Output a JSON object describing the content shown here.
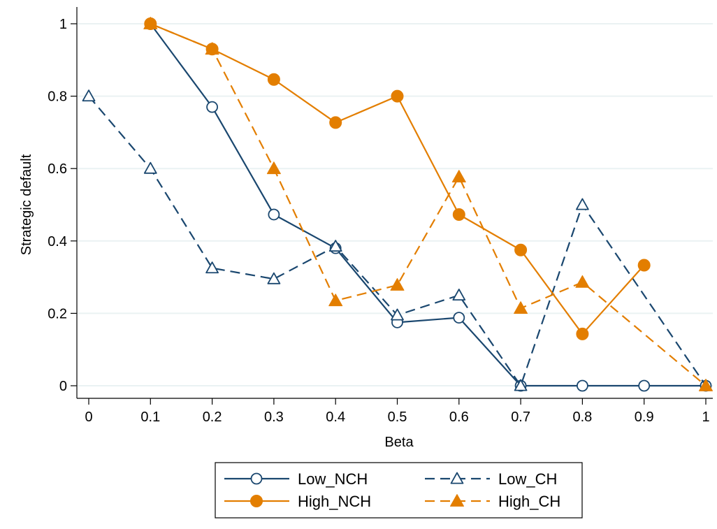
{
  "chart_data": {
    "type": "line",
    "title": "",
    "xlabel": "Beta",
    "ylabel": "Strategic default",
    "xlim": [
      0,
      1
    ],
    "ylim": [
      0,
      1
    ],
    "x_ticks": [
      "0",
      "0.1",
      "0.2",
      "0.3",
      "0.4",
      "0.5",
      "0.6",
      "0.7",
      "0.8",
      "0.9",
      "1"
    ],
    "y_ticks": [
      "0",
      "0.2",
      "0.4",
      "0.6",
      "0.8",
      "1"
    ],
    "grid": true,
    "legend_position": "bottom",
    "series": [
      {
        "name": "Low_NCH",
        "color": "#1a476f",
        "line_style": "solid",
        "marker": "hollow-circle",
        "x": [
          0.1,
          0.2,
          0.3,
          0.4,
          0.5,
          0.6,
          0.7,
          0.8,
          0.9,
          1
        ],
        "y": [
          1.0,
          0.77,
          0.473,
          0.38,
          0.175,
          0.188,
          0.0,
          0.0,
          0.0,
          0.0
        ]
      },
      {
        "name": "Low_CH",
        "color": "#1a476f",
        "line_style": "dashed",
        "marker": "hollow-triangle",
        "x": [
          0,
          0.1,
          0.2,
          0.3,
          0.4,
          0.5,
          0.6,
          0.7,
          0.8,
          1
        ],
        "y": [
          0.8,
          0.6,
          0.325,
          0.295,
          0.385,
          0.195,
          0.25,
          0.0,
          0.5,
          0.0
        ]
      },
      {
        "name": "High_NCH",
        "color": "#e37e00",
        "line_style": "solid",
        "marker": "filled-circle",
        "x": [
          0.1,
          0.2,
          0.3,
          0.4,
          0.5,
          0.6,
          0.7,
          0.8,
          0.9
        ],
        "y": [
          1.0,
          0.93,
          0.846,
          0.727,
          0.8,
          0.473,
          0.375,
          0.143,
          0.333
        ]
      },
      {
        "name": "High_CH",
        "color": "#e37e00",
        "line_style": "dashed",
        "marker": "filled-triangle",
        "x": [
          0.1,
          0.2,
          0.3,
          0.4,
          0.5,
          0.6,
          0.7,
          0.8,
          1
        ],
        "y": [
          1.0,
          0.93,
          0.6,
          0.235,
          0.278,
          0.577,
          0.214,
          0.286,
          0.0
        ]
      }
    ]
  }
}
